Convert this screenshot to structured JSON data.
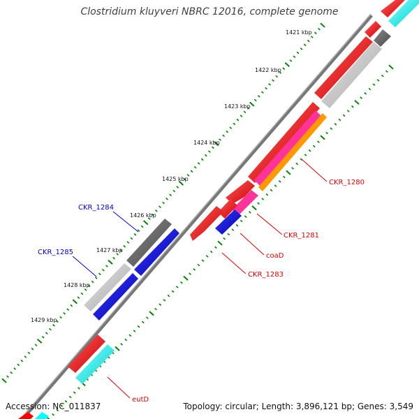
{
  "title": "Clostridium kluyveri NBRC 12016, complete genome",
  "accession": "Accession: NC_011837",
  "summary": "Topology: circular; Length: 3,896,121 bp; Genes: 3,549",
  "scale_ticks": [
    "1421 kbp",
    "1422 kbp",
    "1423 kbp",
    "1424 kbp",
    "1425 kbp",
    "1426 kbp",
    "1427 kbp",
    "1428 kbp",
    "1429 kbp"
  ],
  "gene_labels": {
    "ckr_1280": "CKR_1280",
    "ckr_1281": "CKR_1281",
    "coad": "coaD",
    "ckr_1283": "CKR_1283",
    "ckr_1284": "CKR_1284",
    "ckr_1285": "CKR_1285",
    "eutd": "eutD"
  },
  "colors": {
    "cds": "#ff0000",
    "gene_forward": "#00ffff",
    "gene_reverse": "#0000ff",
    "grey_dark": "#666666",
    "grey_light": "#c8c8c8",
    "pink": "#ff3399",
    "orange": "#ff9900",
    "tick": "#008000",
    "label_red": "#dd0000",
    "label_blue": "#0000cc"
  }
}
